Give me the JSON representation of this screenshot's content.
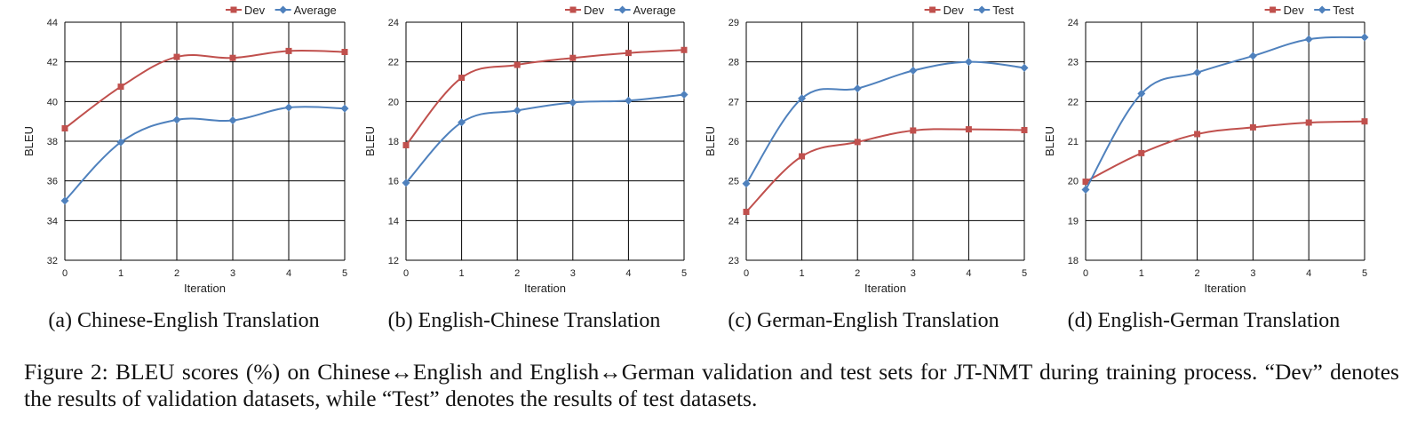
{
  "figure_caption": "Figure 2: BLEU scores (%) on Chinese↔English and English↔German validation and test sets for JT-NMT during training process. “Dev” denotes the results of validation datasets, while “Test” denotes the results of test datasets.",
  "colors": {
    "dev": "#C0504D",
    "second": "#4F81BD",
    "grid": "#000000"
  },
  "chart_data": [
    {
      "type": "line",
      "caption": "(a) Chinese-English Translation",
      "xlabel": "Iteration",
      "ylabel": "BLEU",
      "x": [
        0,
        1,
        2,
        3,
        4,
        5
      ],
      "ylim": [
        32,
        44
      ],
      "yticks": [
        32,
        34,
        36,
        38,
        40,
        42,
        44
      ],
      "xticks": [
        0,
        1,
        2,
        3,
        4,
        5
      ],
      "grid": true,
      "legend_position": "top-right",
      "series": [
        {
          "name": "Dev",
          "color": "#C0504D",
          "marker": "square",
          "values": [
            38.65,
            40.75,
            42.25,
            42.2,
            42.55,
            42.5
          ]
        },
        {
          "name": "Average",
          "color": "#4F81BD",
          "marker": "diamond",
          "values": [
            35.0,
            37.95,
            39.08,
            39.05,
            39.7,
            39.65
          ]
        }
      ]
    },
    {
      "type": "line",
      "caption": "(b) English-Chinese Translation",
      "xlabel": "Iteration",
      "ylabel": "BLEU",
      "x": [
        0,
        1,
        2,
        3,
        4,
        5
      ],
      "ylim": [
        12,
        24
      ],
      "yticks": [
        12,
        14,
        16,
        18,
        20,
        22,
        24
      ],
      "xticks": [
        0,
        1,
        2,
        3,
        4,
        5
      ],
      "grid": true,
      "legend_position": "top-right",
      "series": [
        {
          "name": "Dev",
          "color": "#C0504D",
          "marker": "square",
          "values": [
            17.8,
            21.2,
            21.85,
            22.2,
            22.45,
            22.6
          ]
        },
        {
          "name": "Average",
          "color": "#4F81BD",
          "marker": "diamond",
          "values": [
            15.9,
            18.95,
            19.55,
            19.95,
            20.05,
            20.35
          ]
        }
      ]
    },
    {
      "type": "line",
      "caption": "(c) German-English Translation",
      "xlabel": "Iteration",
      "ylabel": "BLEU",
      "x": [
        0,
        1,
        2,
        3,
        4,
        5
      ],
      "ylim": [
        23,
        29
      ],
      "yticks": [
        23,
        24,
        25,
        26,
        27,
        28,
        29
      ],
      "xticks": [
        0,
        1,
        2,
        3,
        4,
        5
      ],
      "grid": true,
      "legend_position": "top-right",
      "series": [
        {
          "name": "Dev",
          "color": "#C0504D",
          "marker": "square",
          "values": [
            24.22,
            25.62,
            25.98,
            26.27,
            26.3,
            26.28
          ]
        },
        {
          "name": "Test",
          "color": "#4F81BD",
          "marker": "diamond",
          "values": [
            24.93,
            27.08,
            27.33,
            27.78,
            28.0,
            27.85
          ]
        }
      ]
    },
    {
      "type": "line",
      "caption": "(d) English-German Translation",
      "xlabel": "Iteration",
      "ylabel": "BLEU",
      "x": [
        0,
        1,
        2,
        3,
        4,
        5
      ],
      "ylim": [
        18,
        24
      ],
      "yticks": [
        18,
        19,
        20,
        21,
        22,
        23,
        24
      ],
      "xticks": [
        0,
        1,
        2,
        3,
        4,
        5
      ],
      "grid": true,
      "legend_position": "top-right",
      "series": [
        {
          "name": "Dev",
          "color": "#C0504D",
          "marker": "square",
          "values": [
            19.98,
            20.7,
            21.18,
            21.35,
            21.47,
            21.5
          ]
        },
        {
          "name": "Test",
          "color": "#4F81BD",
          "marker": "diamond",
          "values": [
            19.78,
            22.2,
            22.73,
            23.15,
            23.57,
            23.62
          ]
        }
      ]
    }
  ]
}
